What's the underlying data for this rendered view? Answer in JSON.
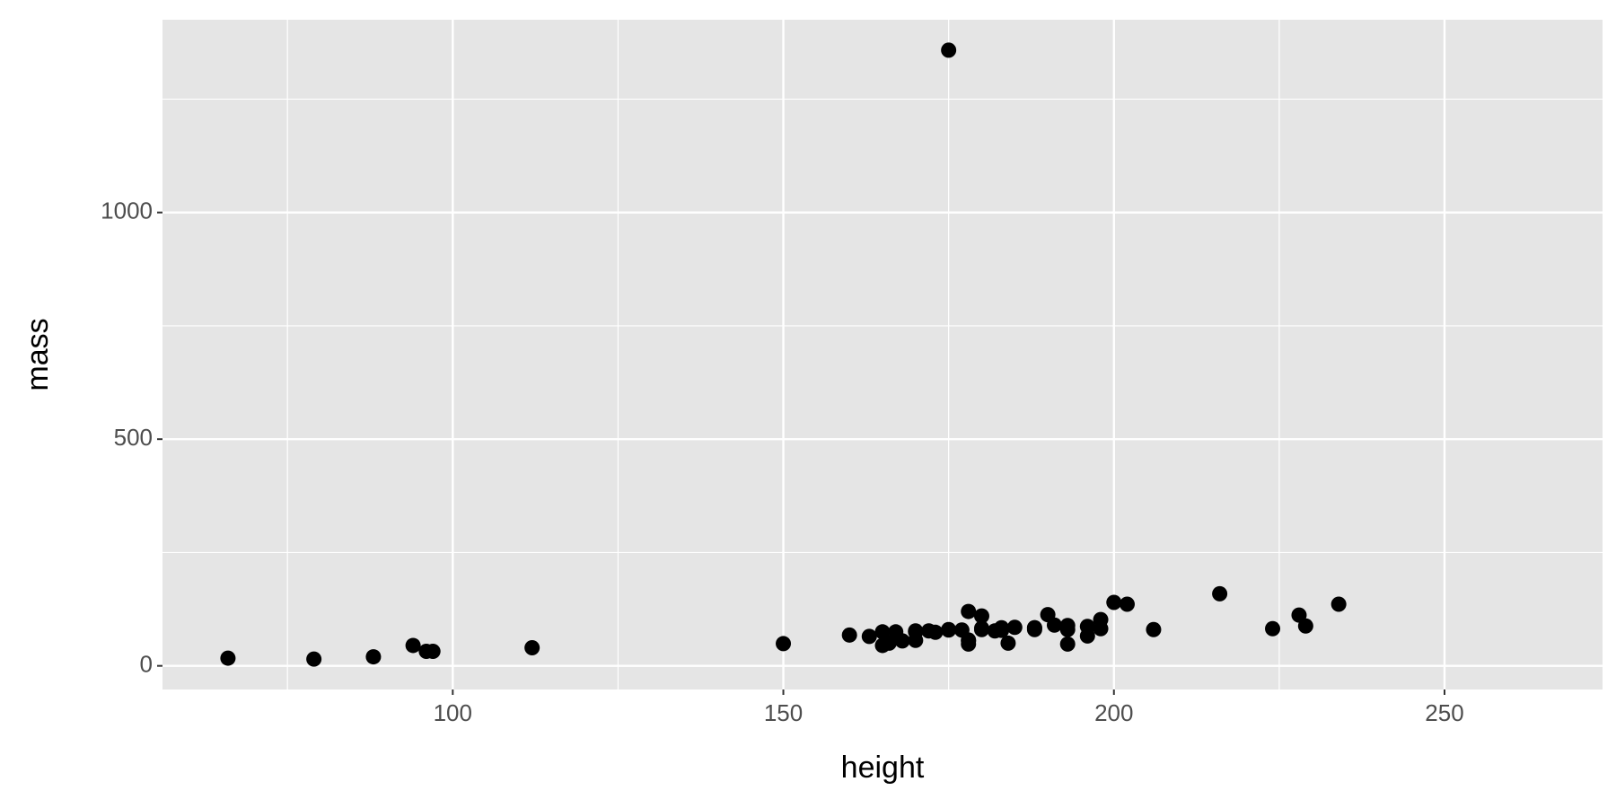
{
  "chart_data": {
    "type": "scatter",
    "xlabel": "height",
    "ylabel": "mass",
    "x": [
      172,
      167,
      96,
      202,
      150,
      178,
      165,
      97,
      183,
      182,
      188,
      228,
      180,
      173,
      175,
      170,
      180,
      66,
      170,
      183,
      200,
      190,
      177,
      175,
      180,
      79,
      88,
      193,
      191,
      165,
      94,
      112,
      175,
      178,
      183,
      168,
      196,
      188,
      198,
      188,
      183,
      170,
      166,
      198,
      193,
      216,
      178,
      206,
      193,
      178,
      196,
      224,
      229,
      185,
      163,
      184,
      160,
      234
    ],
    "values": [
      77,
      75,
      32,
      136,
      49,
      120,
      75,
      32,
      84,
      77,
      84,
      112,
      80,
      74,
      1358,
      77,
      110,
      17,
      75,
      78.2,
      140,
      113,
      79,
      79,
      83,
      15,
      20,
      89,
      90,
      45,
      45,
      40,
      80,
      55,
      79,
      55,
      87,
      84,
      82,
      80,
      80,
      56.2,
      50,
      102,
      80,
      159,
      57,
      80,
      48,
      48,
      66,
      82,
      88,
      85,
      65,
      50,
      68,
      136
    ],
    "color": "#000000",
    "xlim": [
      56.1,
      273.9
    ],
    "ylim": [
      -52.15,
      1425.15
    ],
    "xticks": [
      100,
      150,
      200,
      250
    ],
    "yticks": [
      0,
      500,
      1000
    ],
    "grid": true
  }
}
